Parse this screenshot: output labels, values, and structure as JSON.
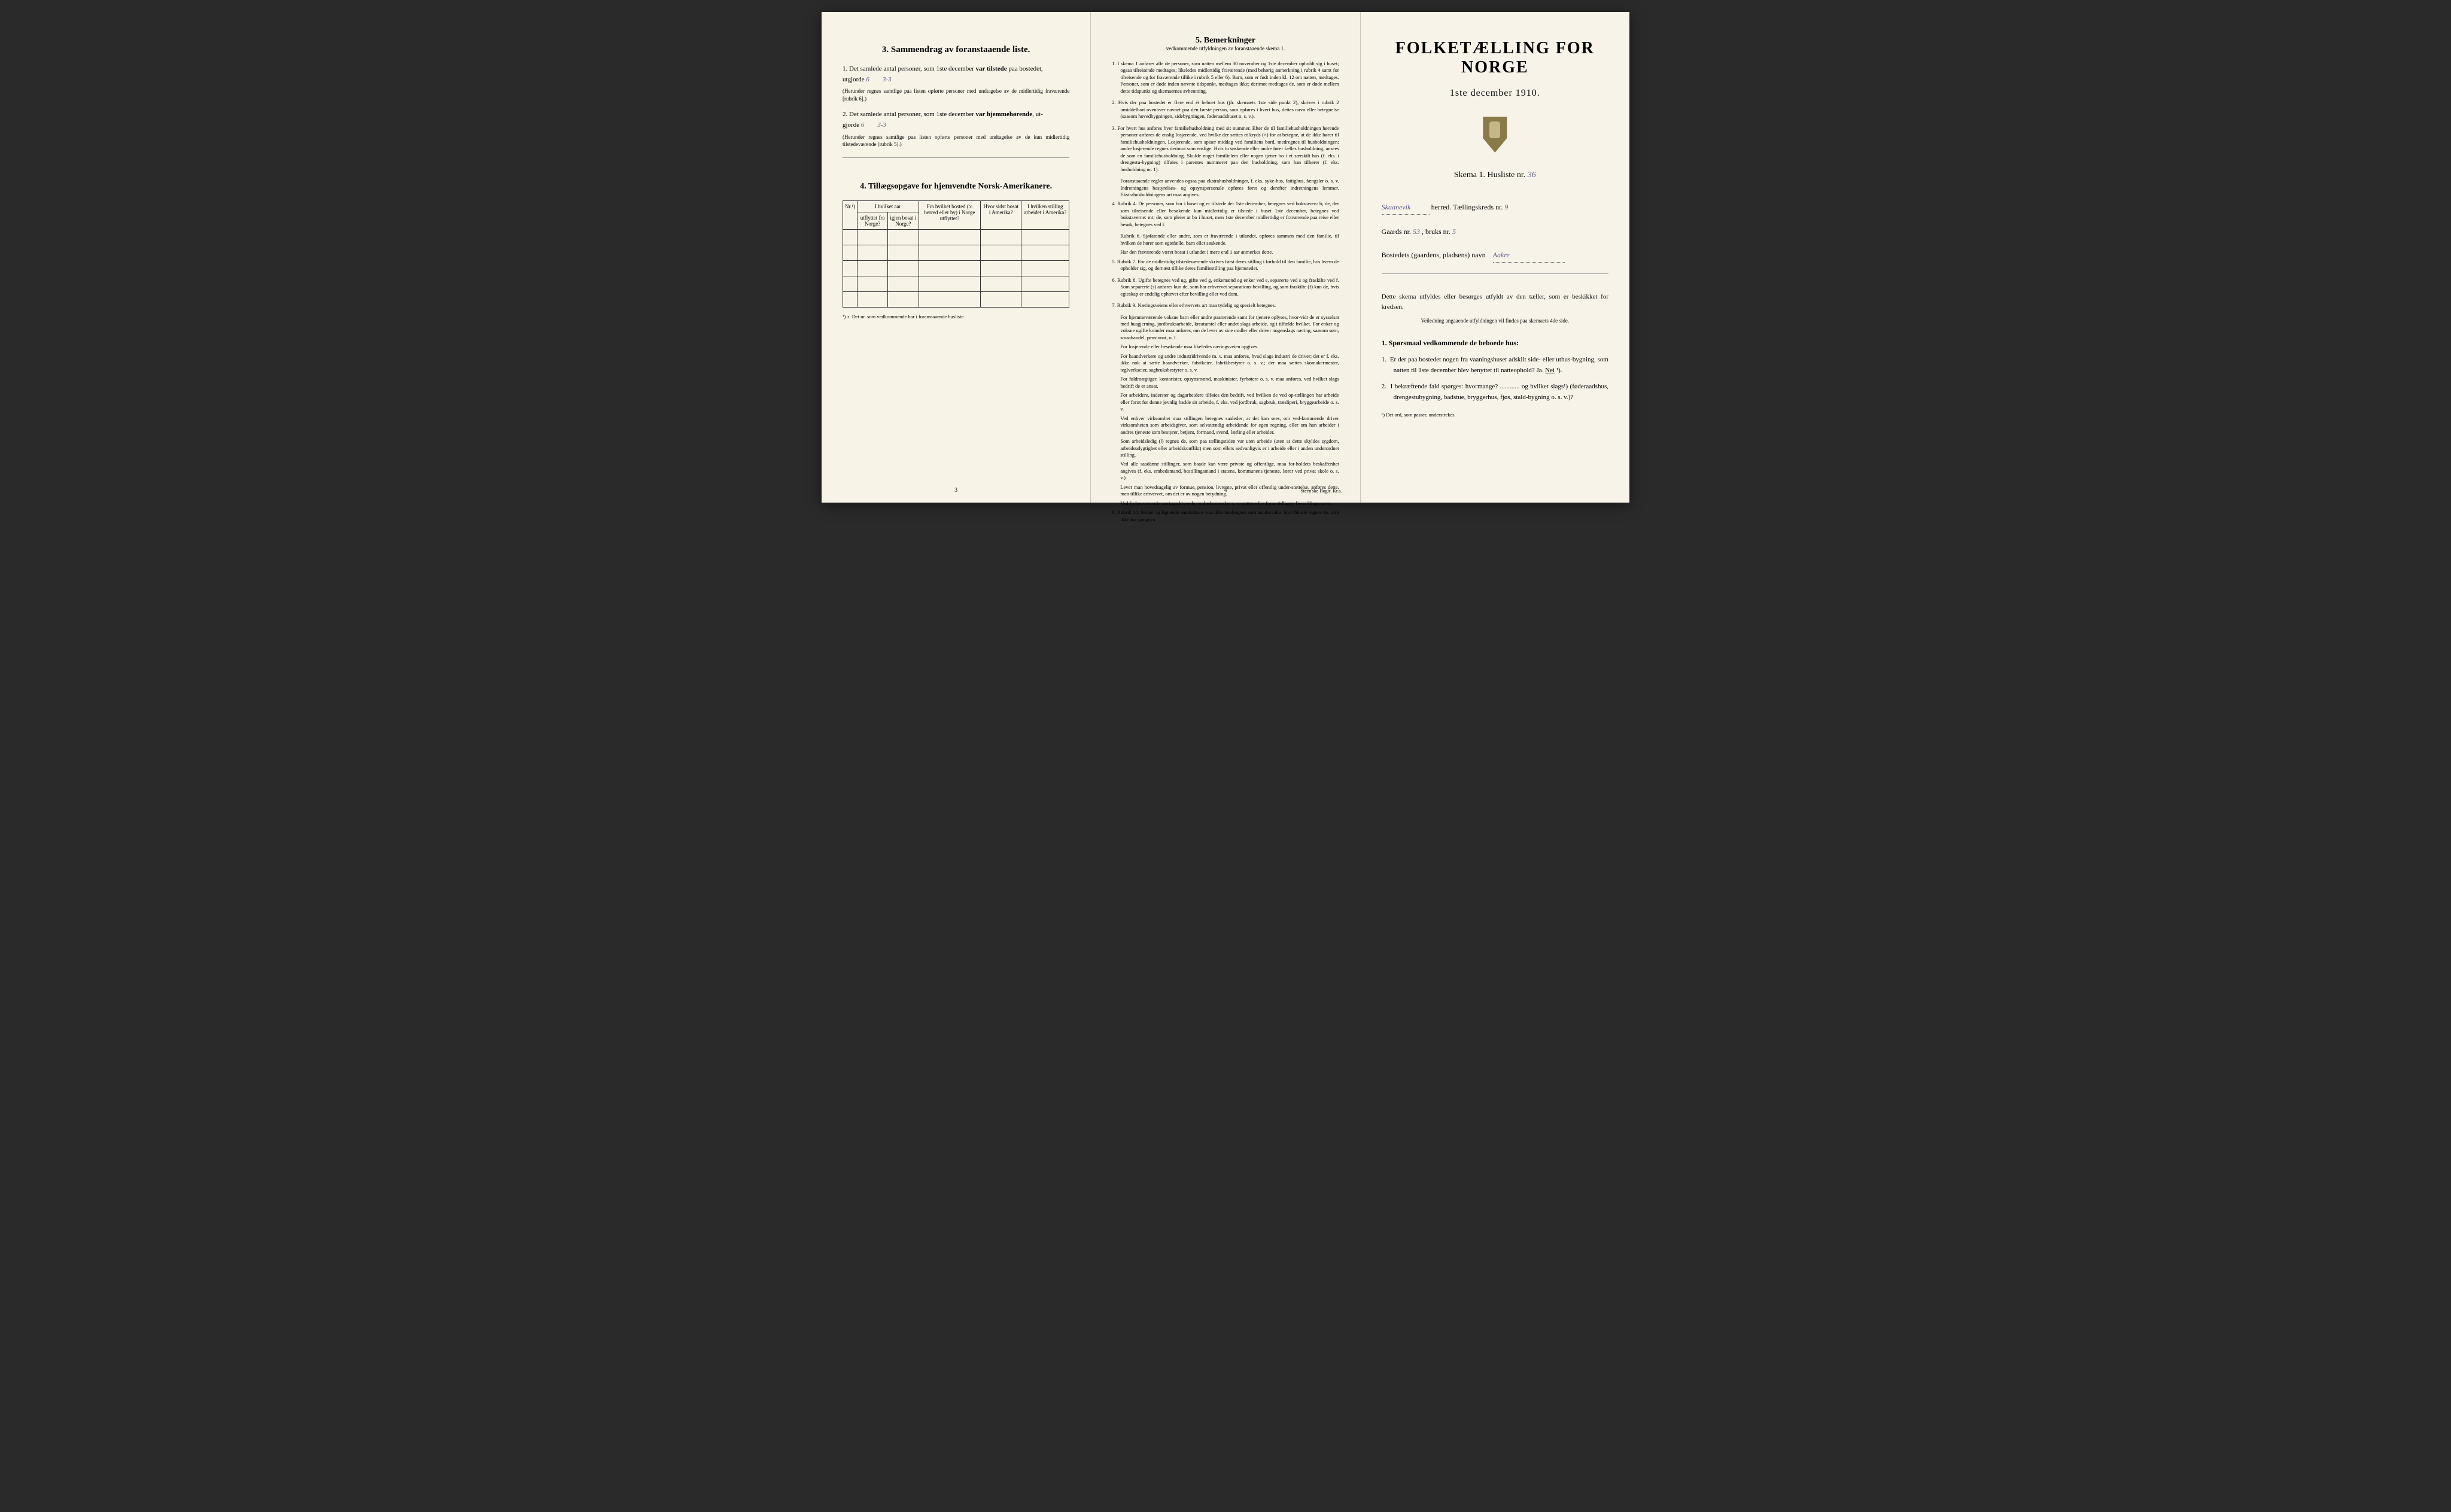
{
  "page1": {
    "section3": {
      "title": "3.  Sammendrag av foranstaaende liste.",
      "item1_prefix": "1.  Det samlede antal personer, som 1ste december ",
      "item1_bold": "var tilstede",
      "item1_suffix": " paa bostedet,",
      "item1_line2": "utgjorde ",
      "item1_hand1": "6",
      "item1_hand2": "3-3",
      "item1_note": "(Herunder regnes samtlige paa listen opførte personer med undtagelse av de midlertidig fraværende [rubrik 6].)",
      "item2_prefix": "2.  Det samlede antal personer, som 1ste december ",
      "item2_bold": "var hjemmehørende",
      "item2_suffix": ", ut-",
      "item2_line2": "gjorde ",
      "item2_hand1": "6",
      "item2_hand2": "3-3",
      "item2_note": "(Herunder regnes samtlige paa listen opførte personer med undtagelse av de kun midlertidig tilstedeværende [rubrik 5].)"
    },
    "section4": {
      "title": "4.  Tillægsopgave for hjemvendte Norsk-Amerikanere.",
      "headers": {
        "col0": "Nr.¹)",
        "col1_top": "I hvilket aar",
        "col1a": "utflyttet fra Norge?",
        "col1b": "igjen bosat i Norge?",
        "col2": "Fra hvilket bosted (ɔ: herred eller by) i Norge utflyttet?",
        "col3": "Hvor sidst bosat i Amerika?",
        "col4": "I hvilken stilling arbeidet i Amerika?"
      },
      "footnote": "¹) ɔ: Det nr. som vedkommende har i foranstaaende husliste."
    },
    "page_num": "3"
  },
  "page2": {
    "title": "5.  Bemerkninger",
    "subtitle": "vedkommende utfyldningen av foranstaaende skema 1.",
    "items": [
      "1.  I skema 1 anføres alle de personer, som natten mellem 30 november og 1ste december opholdt sig i huset; ogsaa tilreisende medtages; likeledes midlertidig fraværende (med behørig anmerkning i rubrik 4 samt for tilreisende og for fraværende tillike i rubrik 5 eller 6). Barn, som er født inden kl. 12 om natten, medtages. Personer, som er døde inden nævnte tidspunkt, medtages ikke; derimot medtages de, som er døde mellem dette tidspunkt og skemaernes avhentning.",
      "2.  Hvis der paa bostedet er flere end ét beboet hus (jfr. skemaets 1ste side punkt 2), skrives i rubrik 2 umiddelbart ovenover navnet paa den første person, som opføres i hvert hus, dettes navn eller betegnelse (saasom hovedbygningen, sidebygningen, føderaadshuset o. s. v.).",
      "3.  For hvert hus anføres hver familiehusholdning med sit nummer. Efter de til familiehusholdningen hørende personer anføres de enslig losjerende, ved hvilke der sættes et kryds (×) for at betegne, at de ikke hører til familiehusholdningen. Losjerende, som spiser middag ved familiens bord, medregnes til husholdningen; andre losjerende regnes derimot som enslige. Hvis to søskende eller andre fører fælles husholdning, ansees de som en familiehusholdning. Skulde noget familielem eller nogen tjener bo i et særskilt hus (f. eks. i drengestu-bygning) tilføies i parentes nummeret paa den husholdning, som han tilhører (f. eks. husholdning nr. 1).",
      "Foranstaaende regler anvendes ogsaa paa ekstrahusholdninger, f. eks. syke-hus, fattighus, fængsler o. s. v. Indretningens bestyrelses- og opsynspersonale opføres først og derefter indretningens lemmer. Ekstrahusholdningens art maa angives.",
      "4.  Rubrik 4. De personer, som bor i huset og er tilstede der 1ste december, betegnes ved bokstaven: b; de, der som tilreisende eller besøkende kun midlertidig er tilstede i huset 1ste december, betegnes ved bokstaverne: mt; de, som pleier at bo i huset, men 1ste december midlertidig er fraværende paa reise eller besøk, betegnes ved f.",
      "Rubrik 6. Sjøfarende eller andre, som er fraværende i utlandet, opføres sammen med den familie, til hvilken de hører som egtefælle, barn eller søskende.",
      "Har den fraværende været bosat i utlandet i mere end 1 aar anmerkes dette.",
      "5.  Rubrik 7. For de midlertidig tilstedeværende skrives først deres stilling i forhold til den familie, hos hvem de opholder sig, og dernæst tillike deres familiestilling paa hjemstedet.",
      "6.  Rubrik 8. Ugifte betegnes ved ug, gifte ved g, enkemænd og enker ved e, separerte ved s og fraskilte ved f. Som separerte (s) anføres kun de, som har erhvervet separations-bevilling, og som fraskilte (f) kun de, hvis egteskap er endelig ophævet efter bevilling eller ved dom.",
      "7.  Rubrik 9. Næringsveiens eller erhvervets art maa tydelig og specielt betegnes.",
      "For hjemmeværende voksne barn eller andre paarørende samt for tjenere oplyses, hvor-vidt de er sysselsat med husgjerning, jordbruksarbeide, kreaturstel eller andet slags arbeide, og i tilfælde hvilket. For enker og voksne ugifte kvinder maa anføres, om de lever av sine midler eller driver nogenslags næring, saasom søm, smaahandel, pensionat, o. l.",
      "For losjerende eller besøkende maa likeledes næringsveien opgives.",
      "For haandverkere og andre industridrivende m. v. maa anføres, hvad slags industri de driver; det er f. eks. ikke nok at sætte haandverker, fabrikeier, fabrikbestyrer o. s. v.; der maa sættes skomakermester, teglverkseier, sagbruksbestyrer o. s. v.",
      "For fuldmægtiger, kontorister, opsynsmænd, maskinister, fyrbøtere o. s. v. maa anføres, ved hvilket slags bedrift de er ansat.",
      "For arbeidere, inderster og dagarbeidere tilføies den bedrift, ved hvilken de ved op-tællingen har arbeide eller forut for denne jevnlig hadde sit arbeide, f. eks. ved jordbruk, sagbruk, træsliperi, bryggearbeide o. s. v.",
      "Ved enhver virksomhet maa stillingen betegnes saaledes, at det kan sees, om ved-kommende driver virksomheten som arbeidsgiver, som selvstændig arbeidende for egen regning, eller om han arbeider i andres tjeneste som bestyrer, betjent, formand, svend, lærling eller arbeider.",
      "Som arbeidsledig (l) regnes de, som paa tællingstiden var uten arbeide (uten at dette skyldes sygdom, arbeidsudygtighet eller arbeidskonflikt) men som ellers sedvanligvis er i arbeide eller i anden underordnet stilling.",
      "Ved alle saadanne stillinger, som baade kan være private og offentlige, maa for-holdets beskaffenhet angives (f. eks. embedsmand, bestillingsmand i statens, kommunens tjeneste, lærer ved privat skole o. s. v.).",
      "Lever man hovedsagelig av formue, pension, livrente, privat eller offentlig under-støttelse, anføres dette, men tillike erhvervet, om det er av nogen betydning.",
      "Ved forhenværende næringsdrivende, embedsmænd o. s. v. sættes «fv» foran tidligere livsstillings navn.",
      "8.  Rubrik 14. Sinker og lignende aandssløve maa ikke medregnes som aandssvake. Som blinde regnes de, som ikke har gangsyn."
    ],
    "page_num": "4",
    "printer": "Steen'ske Bogtr. Kr.a."
  },
  "page3": {
    "main_title": "FOLKETÆLLING FOR NORGE",
    "date": "1ste december 1910.",
    "skema_label": "Skema 1.   Husliste nr.",
    "husliste_nr": "36",
    "herred_name": "Skaanevik",
    "herred_label": "herred.  Tællingskreds nr.",
    "kreds_nr": "9",
    "gaards_label": "Gaards nr.",
    "gaards_nr": "53",
    "bruks_label": ", bruks nr.",
    "bruks_nr": "5",
    "bosted_label": "Bostedets (gaardens, pladsens) navn",
    "bosted_name": "Aakre",
    "filler": "Dette skema utfyldes eller besørges utfyldt av den tæller, som er beskikket for kredsen.",
    "filler_small": "Veiledning angaaende utfyldningen vil findes paa skemaets 4de side.",
    "q_heading": "1.  Spørsmaal vedkommende de beboede hus:",
    "q1_num": "1.",
    "q1_text": "Er der paa bostedet nogen fra vaaningshuset adskilt side- eller uthus-bygning, som natten til 1ste december blev benyttet til natteophold?    Ja.   ",
    "q1_nei": "Nei",
    "q1_sup": " ¹).",
    "q2_num": "2.",
    "q2_text": "I bekræftende fald spørges: hvormange? ............ og hvilket slags¹) (føderaadshus, drengestubygning, badstue, bryggerhus, fjøs, stald-bygning o. s. v.)?",
    "footnote": "¹) Det ord, som passer, understrekes."
  },
  "colors": {
    "paper": "#f5f1e4",
    "ink": "#1a1a1a",
    "handwriting": "#5a5a8a",
    "border": "#333333"
  }
}
